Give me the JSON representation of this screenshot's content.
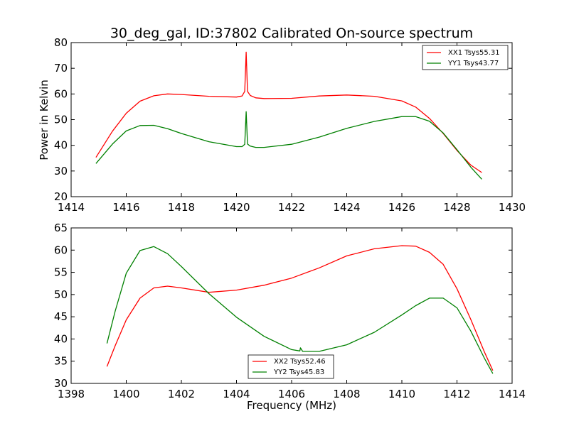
{
  "chart_data": [
    {
      "type": "line",
      "title": "30_deg_gal, ID:37802 Calibrated On-source spectrum",
      "xlabel": "",
      "ylabel": "Power in Kelvin",
      "xlim": [
        1414,
        1430
      ],
      "ylim": [
        20,
        80
      ],
      "xticks": [
        1414,
        1416,
        1418,
        1420,
        1422,
        1424,
        1426,
        1428,
        1430
      ],
      "yticks": [
        20,
        30,
        40,
        50,
        60,
        70,
        80
      ],
      "grid": false,
      "legend_position": "top-right",
      "series": [
        {
          "name": "XX1 Tsys55.31",
          "color": "#ff0000",
          "x": [
            1414.9,
            1415.5,
            1416.0,
            1416.5,
            1417.0,
            1417.5,
            1418.0,
            1419.0,
            1420.0,
            1420.2,
            1420.3,
            1420.35,
            1420.4,
            1420.5,
            1420.7,
            1421.0,
            1422.0,
            1423.0,
            1424.0,
            1425.0,
            1426.0,
            1426.5,
            1427.0,
            1427.5,
            1428.0,
            1428.5,
            1428.9
          ],
          "values": [
            35.3,
            45.5,
            52.5,
            57.2,
            59.3,
            60.0,
            59.8,
            59.1,
            58.8,
            59.2,
            61.0,
            76.3,
            61.0,
            59.4,
            58.5,
            58.2,
            58.3,
            59.2,
            59.6,
            59.1,
            57.3,
            54.9,
            50.5,
            44.6,
            38.0,
            32.3,
            29.4
          ]
        },
        {
          "name": "YY1 Tsys43.77",
          "color": "#008000",
          "x": [
            1414.9,
            1415.5,
            1416.0,
            1416.5,
            1417.0,
            1417.5,
            1418.0,
            1419.0,
            1420.0,
            1420.2,
            1420.3,
            1420.35,
            1420.4,
            1420.5,
            1420.7,
            1421.0,
            1422.0,
            1423.0,
            1424.0,
            1425.0,
            1426.0,
            1426.5,
            1427.0,
            1427.5,
            1428.0,
            1428.5,
            1428.9
          ],
          "values": [
            32.9,
            40.5,
            45.6,
            47.7,
            47.8,
            46.5,
            44.6,
            41.4,
            39.5,
            39.5,
            40.4,
            53.1,
            40.5,
            39.7,
            39.2,
            39.2,
            40.4,
            43.2,
            46.6,
            49.3,
            51.2,
            51.2,
            49.4,
            44.8,
            38.3,
            31.5,
            26.8
          ]
        }
      ]
    },
    {
      "type": "line",
      "title": "",
      "xlabel": "Frequency (MHz)",
      "ylabel": "",
      "xlim": [
        1398,
        1414
      ],
      "ylim": [
        30,
        65
      ],
      "xticks": [
        1398,
        1400,
        1402,
        1404,
        1406,
        1408,
        1410,
        1412,
        1414
      ],
      "yticks": [
        30,
        35,
        40,
        45,
        50,
        55,
        60,
        65
      ],
      "grid": false,
      "legend_position": "bottom-center",
      "series": [
        {
          "name": "XX2 Tsys52.46",
          "color": "#ff0000",
          "x": [
            1399.3,
            1399.6,
            1400.0,
            1400.5,
            1401.0,
            1401.5,
            1402.0,
            1403.0,
            1404.0,
            1405.0,
            1406.0,
            1407.0,
            1408.0,
            1409.0,
            1410.0,
            1410.5,
            1411.0,
            1411.5,
            1412.0,
            1412.5,
            1413.0,
            1413.3
          ],
          "values": [
            33.8,
            38.5,
            44.3,
            49.2,
            51.5,
            51.9,
            51.5,
            50.5,
            51.0,
            52.1,
            53.7,
            56.0,
            58.7,
            60.3,
            61.0,
            60.9,
            59.5,
            56.8,
            51.3,
            44.4,
            37.0,
            32.9
          ]
        },
        {
          "name": "YY2 Tsys45.83",
          "color": "#008000",
          "x": [
            1399.3,
            1399.6,
            1400.0,
            1400.5,
            1401.0,
            1401.5,
            1402.0,
            1403.0,
            1404.0,
            1405.0,
            1406.0,
            1406.3,
            1406.32,
            1406.4,
            1407.0,
            1408.0,
            1409.0,
            1410.0,
            1410.5,
            1411.0,
            1411.5,
            1412.0,
            1412.5,
            1413.0,
            1413.3
          ],
          "values": [
            39.0,
            46.3,
            54.8,
            59.9,
            60.8,
            59.2,
            56.3,
            50.2,
            44.9,
            40.6,
            37.6,
            37.3,
            38.0,
            37.2,
            37.2,
            38.7,
            41.5,
            45.4,
            47.5,
            49.2,
            49.2,
            47.0,
            41.8,
            35.6,
            32.2
          ]
        }
      ]
    }
  ]
}
